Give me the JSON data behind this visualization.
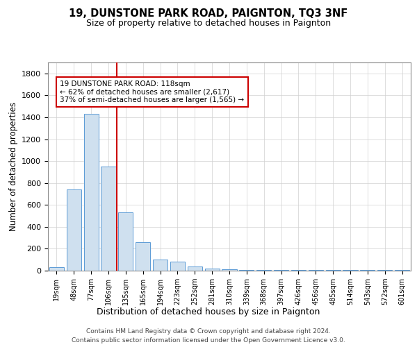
{
  "title1": "19, DUNSTONE PARK ROAD, PAIGNTON, TQ3 3NF",
  "title2": "Size of property relative to detached houses in Paignton",
  "xlabel": "Distribution of detached houses by size in Paignton",
  "ylabel": "Number of detached properties",
  "categories": [
    "19sqm",
    "48sqm",
    "77sqm",
    "106sqm",
    "135sqm",
    "165sqm",
    "194sqm",
    "223sqm",
    "252sqm",
    "281sqm",
    "310sqm",
    "339sqm",
    "368sqm",
    "397sqm",
    "426sqm",
    "456sqm",
    "485sqm",
    "514sqm",
    "543sqm",
    "572sqm",
    "601sqm"
  ],
  "values": [
    30,
    740,
    1430,
    950,
    530,
    260,
    100,
    85,
    35,
    20,
    13,
    5,
    5,
    5,
    5,
    5,
    5,
    5,
    5,
    5,
    5
  ],
  "bar_color": "#cfe0ef",
  "bar_edge_color": "#5b9bd5",
  "red_line_x": 3.5,
  "annotation_text": "19 DUNSTONE PARK ROAD: 118sqm\n← 62% of detached houses are smaller (2,617)\n37% of semi-detached houses are larger (1,565) →",
  "annotation_box_color": "#ffffff",
  "annotation_box_edge_color": "#cc0000",
  "red_line_color": "#cc0000",
  "ylim": [
    0,
    1900
  ],
  "yticks": [
    0,
    200,
    400,
    600,
    800,
    1000,
    1200,
    1400,
    1600,
    1800
  ],
  "grid_color": "#d0d0d0",
  "footer1": "Contains HM Land Registry data © Crown copyright and database right 2024.",
  "footer2": "Contains public sector information licensed under the Open Government Licence v3.0.",
  "bg_color": "#ffffff",
  "title1_fontsize": 10.5,
  "title2_fontsize": 9,
  "tick_fontsize": 7,
  "ylabel_fontsize": 8.5,
  "xlabel_fontsize": 9,
  "annotation_fontsize": 7.5,
  "footer_fontsize": 6.5
}
